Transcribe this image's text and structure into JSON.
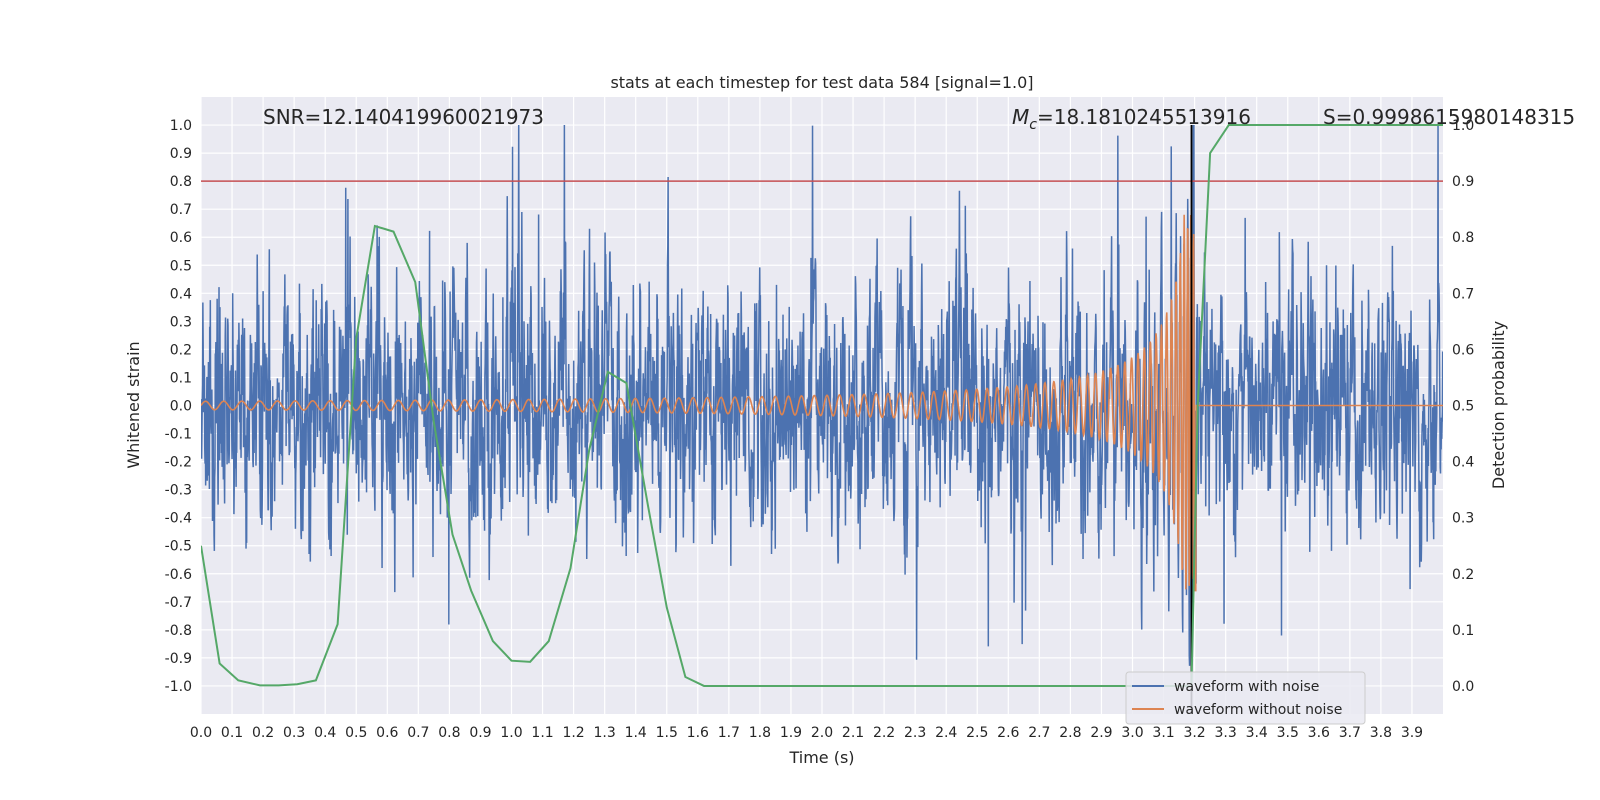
{
  "chart_data": {
    "type": "line",
    "title": "stats at each timestep for test data 584 [signal=1.0]",
    "xlabel": "Time (s)",
    "ylabel_left": "Whitened strain",
    "ylabel_right": "Detection probability",
    "xlim": [
      0.0,
      4.0
    ],
    "ylim_left": [
      -1.1,
      1.1
    ],
    "ylim_right": [
      -0.05,
      1.05
    ],
    "x_ticks": [
      "0.0",
      "0.1",
      "0.2",
      "0.3",
      "0.4",
      "0.5",
      "0.6",
      "0.7",
      "0.8",
      "0.9",
      "1.0",
      "1.1",
      "1.2",
      "1.3",
      "1.4",
      "1.5",
      "1.6",
      "1.7",
      "1.8",
      "1.9",
      "2.0",
      "2.1",
      "2.2",
      "2.3",
      "2.4",
      "2.5",
      "2.6",
      "2.7",
      "2.8",
      "2.9",
      "3.0",
      "3.1",
      "3.2",
      "3.3",
      "3.4",
      "3.5",
      "3.6",
      "3.7",
      "3.8",
      "3.9"
    ],
    "y_ticks_left": [
      "-1.0",
      "-0.9",
      "-0.8",
      "-0.7",
      "-0.6",
      "-0.5",
      "-0.4",
      "-0.3",
      "-0.2",
      "-0.1",
      "0.0",
      "0.1",
      "0.2",
      "0.3",
      "0.4",
      "0.5",
      "0.6",
      "0.7",
      "0.8",
      "0.9",
      "1.0"
    ],
    "y_ticks_right": [
      "0.0",
      "0.1",
      "0.2",
      "0.3",
      "0.4",
      "0.5",
      "0.6",
      "0.7",
      "0.8",
      "0.9",
      "1.0"
    ],
    "grid": true,
    "legend_position": "lower-right",
    "annotations": {
      "snr": "SNR=12.140419960021973",
      "mc_symbol": "M",
      "mc_sub": "c",
      "mc_value": "=18.1810245513916",
      "s": "S=0.9998615980148315"
    },
    "threshold_line": {
      "axis": "right",
      "y": 0.9,
      "color": "#c44e52"
    },
    "merger_time": 3.19,
    "series": [
      {
        "name": "waveform with noise",
        "axis": "left",
        "color": "#4c72b0",
        "noise_amplitude": 0.28,
        "peak_amplitude": 1.0
      },
      {
        "name": "waveform without noise",
        "axis": "left",
        "color": "#dd8452",
        "chirp": {
          "start_amplitude": 0.015,
          "peak_amplitude": 0.68,
          "peak_time": 3.2,
          "start_frequency_hz": 17
        }
      },
      {
        "name": "",
        "axis": "right",
        "color": "#55a868",
        "x": [
          0.0,
          0.06,
          0.12,
          0.19,
          0.25,
          0.31,
          0.37,
          0.44,
          0.5,
          0.56,
          0.62,
          0.69,
          0.75,
          0.81,
          0.87,
          0.94,
          1.0,
          1.06,
          1.12,
          1.19,
          1.25,
          1.31,
          1.37,
          1.44,
          1.5,
          1.56,
          1.62,
          1.69,
          3.15,
          3.19,
          3.21,
          3.25,
          3.31,
          3.4,
          4.0
        ],
        "y": [
          0.25,
          0.04,
          0.01,
          0.001,
          0.001,
          0.003,
          0.01,
          0.11,
          0.62,
          0.82,
          0.81,
          0.72,
          0.47,
          0.27,
          0.17,
          0.08,
          0.045,
          0.043,
          0.08,
          0.21,
          0.42,
          0.56,
          0.54,
          0.32,
          0.14,
          0.016,
          0.0,
          0.0,
          0.0,
          0.0,
          0.5,
          0.95,
          1.0,
          1.0,
          1.0
        ]
      }
    ]
  }
}
